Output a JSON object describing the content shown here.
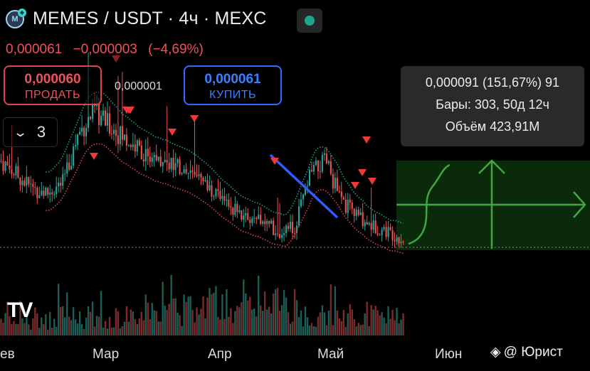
{
  "header": {
    "coin_logo_text": "M",
    "pair": "MEMES / USDT",
    "timeframe": "4ч",
    "exchange": "MEXC",
    "separator": " · "
  },
  "price": {
    "last": "0,000061",
    "change": "−0,000003",
    "change_pct": "(−4,69%)",
    "color_down": "#f0525b"
  },
  "trade": {
    "sell_price": "0,000060",
    "sell_label": "ПРОДАТЬ",
    "spread": "0,000001",
    "buy_price": "0,000061",
    "buy_label": "КУПИТЬ"
  },
  "indicators_toggle": {
    "count": "3"
  },
  "measure_tooltip": {
    "line1": "0,000091 (151,67%) 91",
    "line2": "Бары: 303, 50д 12ч",
    "line3": "Объём 423,91M"
  },
  "xaxis": {
    "labels": [
      "ев",
      "Мар",
      "Апр",
      "Май",
      "Июн"
    ]
  },
  "watermark": {
    "text": "@ Юрист"
  },
  "colors": {
    "up": "#26a69a",
    "down": "#ef5350",
    "trendline": "#2f5bff",
    "projection": "#3fa83f",
    "band_upper": "#1f9e88",
    "band_lower": "#e0414b",
    "accent_status": "#1fa58e"
  },
  "chart_data": {
    "type": "candlestick",
    "title": "MEMES / USDT · 4ч · MEXC",
    "x_range": [
      "Feb",
      "Jun"
    ],
    "y_unit": "USDT",
    "last_price": 6.1e-05,
    "pivot_high": {
      "price": 9.1e-05,
      "change_pct": 151.67,
      "bars": 303,
      "duration": "50д 12ч",
      "volume": "423,91M"
    },
    "series": [
      {
        "name": "close",
        "values": [
          9e-05,
          8.5e-05,
          8e-05,
          7.8e-05,
          8.2e-05,
          0.0001,
          0.000108,
          0.000103,
          9.8e-05,
          9.4e-05,
          9.1e-05,
          8.8e-05,
          8.6e-05,
          8.2e-05,
          7.8e-05,
          7.2e-05,
          6.9e-05,
          6.7e-05,
          6.4e-05,
          6.6e-05,
          8.5e-05,
          9e-05,
          7.5e-05,
          7e-05,
          6.6e-05,
          6.4e-05,
          6.1e-05
        ]
      }
    ],
    "sell_markers": 12,
    "trendline": "descending (Apr–May)",
    "projection": "upward arrow"
  }
}
